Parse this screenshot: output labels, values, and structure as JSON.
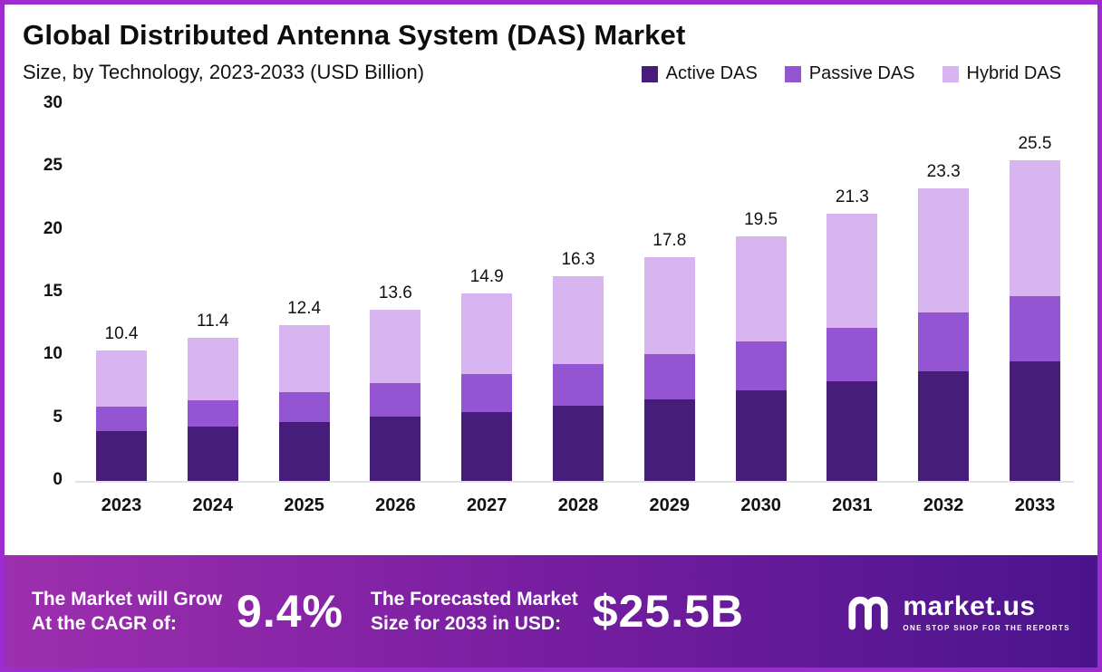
{
  "title": "Global Distributed Antenna System (DAS) Market",
  "subtitle": "Size, by Technology, 2023-2033 (USD Billion)",
  "colors": {
    "active": "#471d7c",
    "passive": "#9455d2",
    "hybrid": "#d8b4f0",
    "frame": "#9c2bd0"
  },
  "chart_data": {
    "type": "bar",
    "stacked": true,
    "title": "Global Distributed Antenna System (DAS) Market Size, by Technology, 2023-2033 (USD Billion)",
    "categories": [
      "2023",
      "2024",
      "2025",
      "2026",
      "2027",
      "2028",
      "2029",
      "2030",
      "2031",
      "2032",
      "2033"
    ],
    "series": [
      {
        "name": "Active DAS",
        "color": "#471d7c",
        "values": [
          4.0,
          4.3,
          4.7,
          5.1,
          5.5,
          6.0,
          6.5,
          7.2,
          7.9,
          8.7,
          9.5
        ]
      },
      {
        "name": "Passive DAS",
        "color": "#9455d2",
        "values": [
          1.9,
          2.1,
          2.4,
          2.7,
          3.0,
          3.3,
          3.6,
          3.9,
          4.3,
          4.7,
          5.2
        ]
      },
      {
        "name": "Hybrid DAS",
        "color": "#d8b4f0",
        "values": [
          4.5,
          5.0,
          5.3,
          5.8,
          6.4,
          7.0,
          7.7,
          8.4,
          9.1,
          9.9,
          10.8
        ]
      }
    ],
    "totals": [
      "10.4",
      "11.4",
      "12.4",
      "13.6",
      "14.9",
      "16.3",
      "17.8",
      "19.5",
      "21.3",
      "23.3",
      "25.5"
    ],
    "ylim": [
      0,
      30
    ],
    "yticks": [
      0,
      5,
      10,
      15,
      20,
      25,
      30
    ],
    "legend_position": "top-right",
    "grid": false
  },
  "banner": {
    "cagr_label_line1": "The Market will Grow",
    "cagr_label_line2": "At the CAGR of:",
    "cagr_value": "9.4%",
    "forecast_label_line1": "The Forecasted Market",
    "forecast_label_line2": "Size for 2033 in USD:",
    "forecast_value": "$25.5B",
    "brand_name": "market.us",
    "brand_tagline": "ONE STOP SHOP FOR THE REPORTS"
  }
}
